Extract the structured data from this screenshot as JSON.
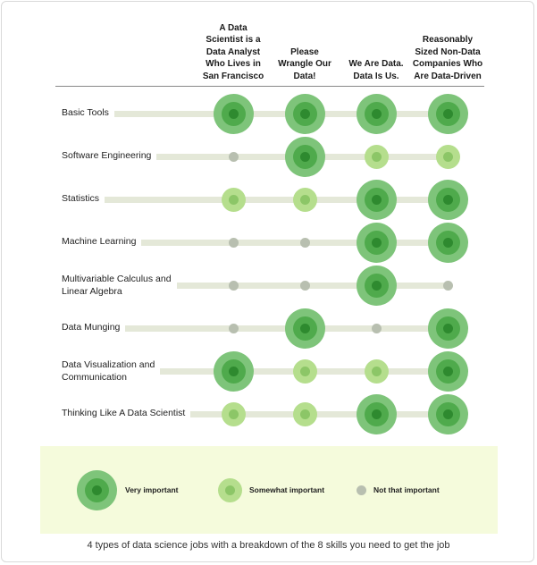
{
  "columns": [
    {
      "label": "A Data\nScientist is a\nData Analyst\nWho Lives in\nSan Francisco"
    },
    {
      "label": "Please\nWrangle Our\nData!"
    },
    {
      "label": "We Are Data.\nData Is Us."
    },
    {
      "label": "Reasonably\nSized Non-Data\nCompanies Who\nAre Data-Driven"
    }
  ],
  "rows": [
    {
      "label": "Basic Tools",
      "levels": [
        "very",
        "very",
        "very",
        "very"
      ]
    },
    {
      "label": "Software Engineering",
      "levels": [
        "not",
        "very",
        "somewhat",
        "somewhat"
      ]
    },
    {
      "label": "Statistics",
      "levels": [
        "somewhat",
        "somewhat",
        "very",
        "very"
      ]
    },
    {
      "label": "Machine Learning",
      "levels": [
        "not",
        "not",
        "very",
        "very"
      ]
    },
    {
      "label": "Multivariable Calculus and\nLinear Algebra",
      "levels": [
        "not",
        "not",
        "very",
        "not"
      ]
    },
    {
      "label": "Data Munging",
      "levels": [
        "not",
        "very",
        "not",
        "very"
      ]
    },
    {
      "label": "Data Visualization and\nCommunication",
      "levels": [
        "very",
        "somewhat",
        "somewhat",
        "very"
      ]
    },
    {
      "label": "Thinking Like A Data Scientist",
      "levels": [
        "somewhat",
        "somewhat",
        "very",
        "very"
      ]
    }
  ],
  "legend": {
    "very": "Very important",
    "somewhat": "Somewhat important",
    "not": "Not that important"
  },
  "colors": {
    "very_outer": "#7ec47a",
    "very_mid": "#4faa4c",
    "very_core": "#2e8a2f",
    "somewhat_outer": "#b5de8d",
    "somewhat_core": "#8cc667",
    "not": "#b8bfb0",
    "bar": "#e4e8d8"
  },
  "caption": "4 types of data science jobs with a breakdown of the 8 skills you need to get the job"
}
